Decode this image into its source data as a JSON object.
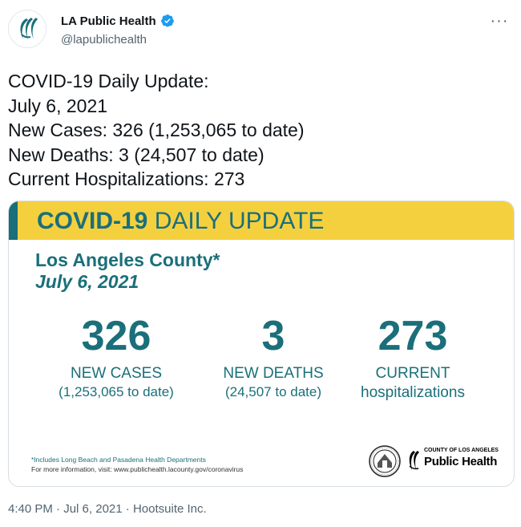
{
  "tweet": {
    "author": {
      "display_name": "LA Public Health",
      "handle": "@lapublichealth",
      "verified": true,
      "avatar_icon": "la-public-health-logo-icon"
    },
    "more_icon": "more-options-icon",
    "text_lines": [
      "COVID-19 Daily Update:",
      "July 6, 2021",
      "New Cases: 326 (1,253,065 to date)",
      "New Deaths: 3 (24,507 to date)",
      "Current Hospitalizations: 273"
    ],
    "meta": {
      "time": "4:40 PM",
      "date": "Jul 6, 2021",
      "separator": " · ",
      "source": "Hootsuite Inc."
    }
  },
  "card": {
    "banner_bold": "COVID-19",
    "banner_rest": " DAILY UPDATE",
    "county": "Los Angeles County*",
    "date": "July 6, 2021",
    "stats": [
      {
        "value": "326",
        "label": "NEW CASES",
        "sub": "(1,253,065 to date)"
      },
      {
        "value": "3",
        "label": "NEW DEATHS",
        "sub": "(24,507 to date)"
      },
      {
        "value": "273",
        "label": "CURRENT",
        "sub": "hospitalizations"
      }
    ],
    "footnote": "*Includes Long Beach and Pasadena Health Departments",
    "more_info": "For more information, visit: www.publichealth.lacounty.gov/coronavirus",
    "dept_small": "COUNTY OF LOS ANGELES",
    "dept_big": "Public Health"
  },
  "colors": {
    "teal": "#1a6f7a",
    "yellow": "#f4d03f",
    "verified_blue": "#1d9bf0",
    "muted": "#536471"
  }
}
